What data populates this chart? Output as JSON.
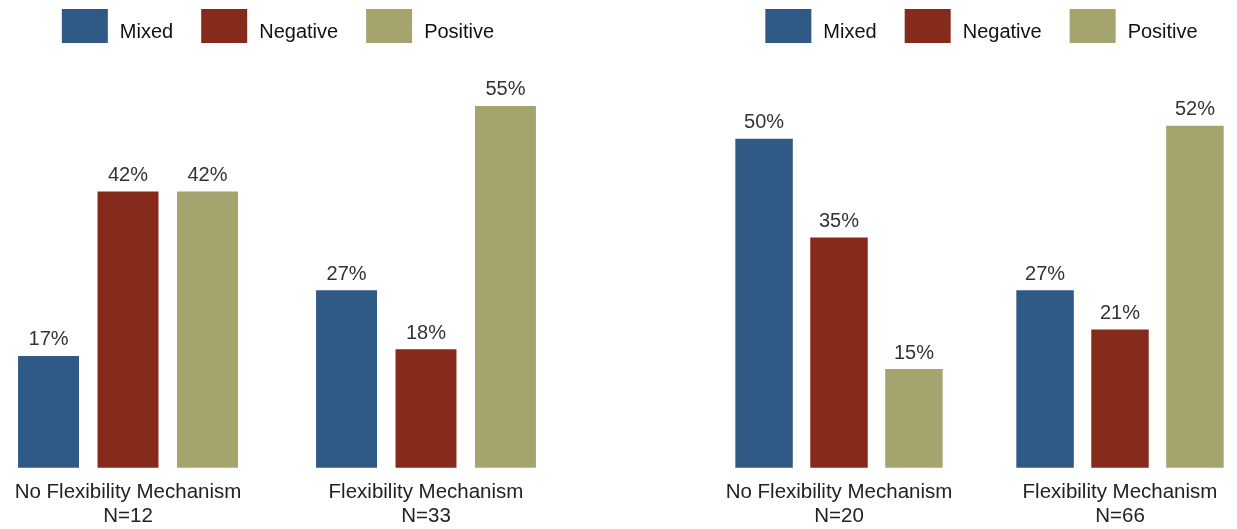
{
  "chart_data": [
    {
      "type": "bar",
      "categories": [
        "No Flexibility Mechanism\nN=12",
        "Flexibility Mechanism\nN=33"
      ],
      "series": [
        {
          "name": "Mixed",
          "color": "#2f5a86",
          "values": [
            17,
            27
          ],
          "value_labels": [
            "17%",
            "27%"
          ]
        },
        {
          "name": "Negative",
          "color": "#862b1c",
          "values": [
            42,
            18
          ],
          "value_labels": [
            "42%",
            "18%"
          ]
        },
        {
          "name": "Positive",
          "color": "#a6a46e",
          "values": [
            42,
            55
          ],
          "value_labels": [
            "42%",
            "55%"
          ]
        }
      ],
      "legend": "top",
      "tick_labels": "x"
    },
    {
      "type": "bar",
      "categories": [
        "No Flexibility Mechanism\nN=20",
        "Flexibility Mechanism\nN=66"
      ],
      "series": [
        {
          "name": "Mixed",
          "color": "#2f5a86",
          "values": [
            50,
            27
          ],
          "value_labels": [
            "50%",
            "27%"
          ]
        },
        {
          "name": "Negative",
          "color": "#862b1c",
          "values": [
            35,
            21
          ],
          "value_labels": [
            "35%",
            "21%"
          ]
        },
        {
          "name": "Positive",
          "color": "#a6a46e",
          "values": [
            15,
            52
          ],
          "value_labels": [
            "15%",
            "52%"
          ]
        }
      ],
      "legend": "top",
      "tick_labels": "x"
    }
  ]
}
